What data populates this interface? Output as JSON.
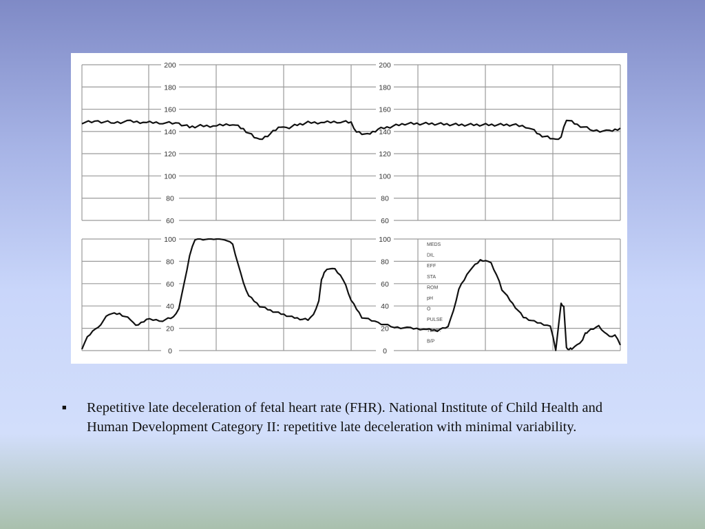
{
  "chart_data": [
    {
      "type": "line",
      "title": "",
      "xlabel": "",
      "ylabel": "",
      "ylim": [
        60,
        200
      ],
      "yticks": [
        200,
        180,
        160,
        140,
        120,
        100,
        80,
        60
      ],
      "grid": true,
      "series": [
        {
          "x": [
            0,
            0.03,
            0.06,
            0.09,
            0.12,
            0.15,
            0.18,
            0.2,
            0.22,
            0.25,
            0.28,
            0.3,
            0.32,
            0.33,
            0.35,
            0.37,
            0.38,
            0.4,
            0.42,
            0.45,
            0.48,
            0.5,
            0.51,
            0.53,
            0.55,
            0.6,
            0.65,
            0.7,
            0.75,
            0.8,
            0.83,
            0.85,
            0.87,
            0.88,
            0.89,
            0.9,
            0.92,
            0.95,
            0.98,
            1.0
          ],
          "values": [
            148,
            149,
            148,
            149,
            148,
            148,
            147,
            144,
            145,
            145,
            147,
            142,
            135,
            132,
            138,
            145,
            143,
            146,
            148,
            148,
            149,
            148,
            140,
            137,
            142,
            147,
            147,
            146,
            146,
            146,
            144,
            137,
            134,
            132,
            135,
            151,
            146,
            141,
            140,
            143
          ]
        }
      ]
    },
    {
      "type": "line",
      "title": "",
      "xlabel": "",
      "ylabel": "",
      "ylim": [
        0,
        100
      ],
      "yticks": [
        100,
        80,
        60,
        40,
        20,
        0
      ],
      "grid": true,
      "side_labels": [
        "MEDS",
        "DIL",
        "EFF",
        "STA",
        "ROM",
        "pH",
        "O",
        "PULSE",
        "TEMP.",
        "B/P"
      ],
      "series": [
        {
          "x": [
            0,
            0.01,
            0.02,
            0.03,
            0.04,
            0.05,
            0.07,
            0.09,
            0.1,
            0.12,
            0.15,
            0.17,
            0.18,
            0.19,
            0.2,
            0.21,
            0.22,
            0.23,
            0.24,
            0.25,
            0.265,
            0.28,
            0.29,
            0.3,
            0.31,
            0.33,
            0.35,
            0.37,
            0.39,
            0.41,
            0.42,
            0.43,
            0.44,
            0.445,
            0.45,
            0.46,
            0.47,
            0.48,
            0.49,
            0.5,
            0.52,
            0.55,
            0.58,
            0.61,
            0.64,
            0.66,
            0.67,
            0.68,
            0.69,
            0.7,
            0.72,
            0.74,
            0.75,
            0.76,
            0.77,
            0.78,
            0.8,
            0.82,
            0.84,
            0.87,
            0.88,
            0.89,
            0.895,
            0.9,
            0.905,
            0.91,
            0.92,
            0.93,
            0.935,
            0.94,
            0.95,
            0.96,
            0.97,
            0.98,
            0.99,
            1.0
          ],
          "values": [
            2,
            12,
            18,
            20,
            27,
            33,
            33,
            28,
            22,
            28,
            27,
            30,
            38,
            60,
            85,
            100,
            100,
            100,
            100,
            100,
            100,
            95,
            78,
            60,
            49,
            40,
            36,
            33,
            30,
            28,
            28,
            32,
            45,
            63,
            70,
            74,
            73,
            68,
            58,
            45,
            30,
            25,
            21,
            20,
            19,
            18,
            20,
            22,
            35,
            55,
            72,
            81,
            81,
            78,
            68,
            55,
            42,
            30,
            26,
            22,
            1,
            42,
            40,
            2,
            1,
            2,
            5,
            10,
            15,
            17,
            20,
            22,
            17,
            12,
            14,
            5
          ]
        }
      ]
    }
  ],
  "caption": {
    "bullet": "■",
    "text": "Repetitive late deceleration of fetal heart rate (FHR). National Institute of Child Health and Human Development Category II: repetitive late deceleration with minimal variability."
  }
}
